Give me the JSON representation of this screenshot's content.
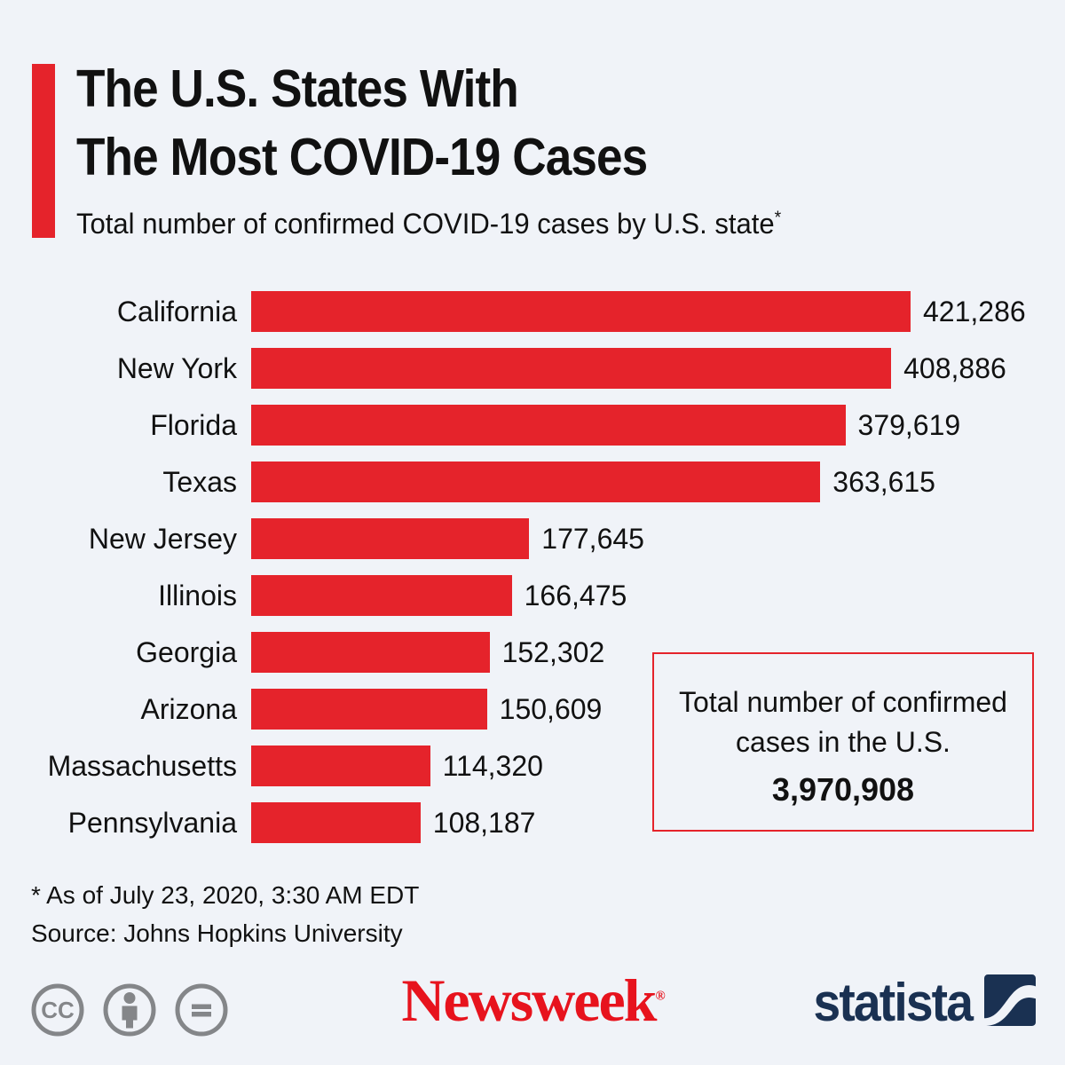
{
  "colors": {
    "background": "#f0f3f8",
    "bar_red": "#e5232b",
    "accent_red": "#e5232b",
    "newsweek_red": "#e7131d",
    "statista_navy": "#1a3152",
    "cc_gray": "#848689",
    "text": "#111111"
  },
  "header": {
    "title_line1": "The U.S. States With",
    "title_line2": "The Most COVID-19 Cases",
    "subtitle": "Total number of confirmed COVID-19 cases by U.S. state",
    "footnote_marker": "*"
  },
  "chart_data": {
    "type": "bar",
    "orientation": "horizontal",
    "title": "The U.S. States With The Most COVID-19 Cases",
    "subtitle": "Total number of confirmed COVID-19 cases by U.S. state*",
    "categories": [
      "California",
      "New York",
      "Florida",
      "Texas",
      "New Jersey",
      "Illinois",
      "Georgia",
      "Arizona",
      "Massachusetts",
      "Pennsylvania"
    ],
    "values": [
      421286,
      408886,
      379619,
      363615,
      177645,
      166475,
      152302,
      150609,
      114320,
      108187
    ],
    "value_labels": [
      "421,286",
      "408,886",
      "379,619",
      "363,615",
      "177,645",
      "166,475",
      "152,302",
      "150,609",
      "114,320",
      "108,187"
    ],
    "bar_color": "#e5232b",
    "xlim": [
      0,
      421286
    ],
    "grid": false,
    "legend": "none",
    "total_us_cases": 3970908
  },
  "total_box": {
    "line1": "Total number of confirmed",
    "line2": "cases in the U.S.",
    "value": "3,970,908"
  },
  "footnotes": {
    "asterisk": "* As of July 23, 2020, 3:30 AM EDT",
    "source": "Source: Johns Hopkins University"
  },
  "footer": {
    "license_icons": [
      "cc-license-icon",
      "attribution-icon",
      "no-derivatives-icon"
    ],
    "newsweek": "Newsweek",
    "newsweek_mark": "®",
    "statista": "statista"
  }
}
